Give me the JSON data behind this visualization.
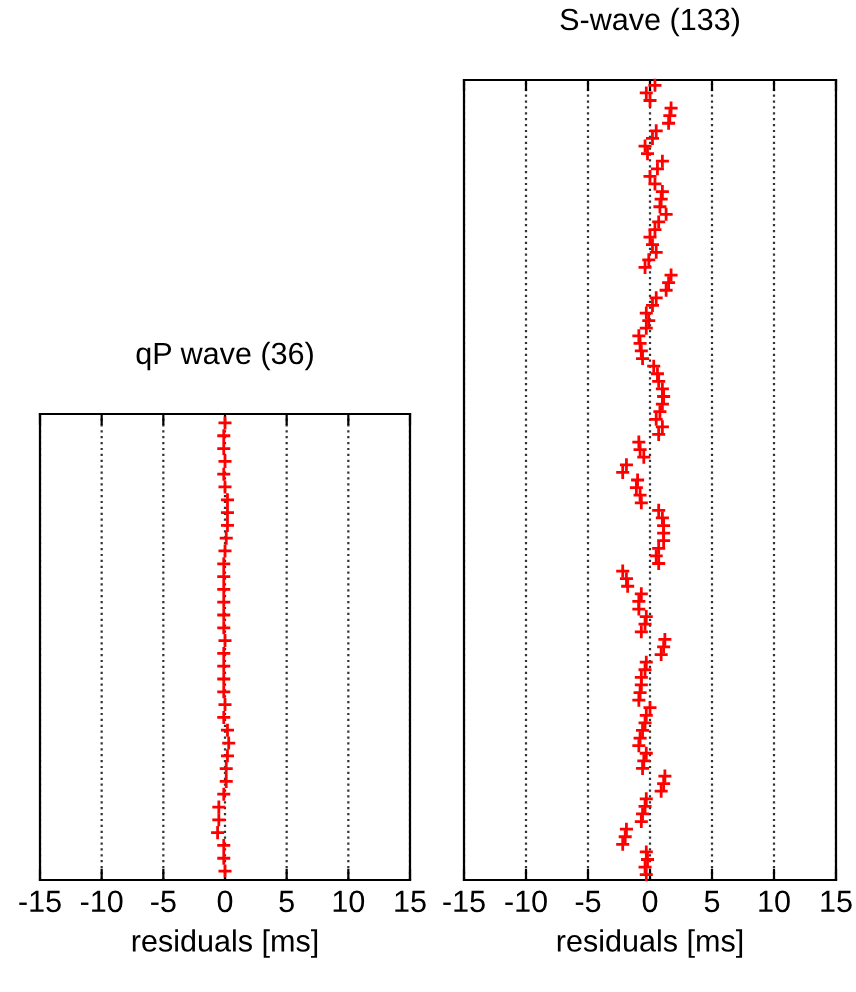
{
  "chart_data": [
    {
      "type": "scatter",
      "title": "qP wave (36)",
      "xlabel": "residuals [ms]",
      "orientation": "horizontal",
      "marker": "cross",
      "grid": "x",
      "tick_labels": "x",
      "xlim": [
        -15,
        15
      ],
      "xticks": [
        -15,
        -10,
        -5,
        0,
        5,
        10,
        15
      ],
      "categories": [
        null,
        null,
        null,
        null,
        null,
        null,
        null,
        null,
        null,
        null,
        null,
        null,
        null,
        null,
        null,
        null,
        null,
        null,
        null,
        null,
        null,
        null,
        null,
        null,
        null,
        null,
        null,
        null,
        null,
        null,
        null,
        null,
        null,
        null,
        null,
        null
      ],
      "series": [
        {
          "color": "#ff0000",
          "values": [
            0,
            -0.1,
            -0.1,
            0,
            -0.1,
            0,
            0.2,
            0.2,
            0.2,
            0.1,
            0,
            -0.1,
            -0.1,
            -0.1,
            -0.1,
            -0.1,
            -0.1,
            0,
            -0.1,
            -0.1,
            -0.1,
            -0.1,
            0,
            -0.1,
            0.2,
            0.3,
            0.2,
            0.1,
            0.1,
            -0.1,
            -0.5,
            -0.5,
            -0.6,
            -0.1,
            -0.1,
            0
          ]
        }
      ]
    },
    {
      "type": "scatter",
      "title": "S-wave (133)",
      "xlabel": "residuals [ms]",
      "orientation": "horizontal",
      "marker": "cross",
      "grid": "x",
      "tick_labels": "x",
      "xlim": [
        -15,
        15
      ],
      "xticks": [
        -15,
        -10,
        -5,
        0,
        5,
        10,
        15
      ],
      "categories": [
        null,
        null,
        null,
        null,
        null,
        null,
        null,
        null,
        null,
        null,
        null,
        null,
        null,
        null,
        null,
        null,
        null,
        null,
        null,
        null,
        null,
        null,
        null,
        null,
        null,
        null,
        null,
        null,
        null,
        null,
        null,
        null,
        null,
        null,
        null,
        null,
        null,
        null,
        null,
        null,
        null,
        null,
        null,
        null,
        null,
        null,
        null,
        null,
        null,
        null,
        null,
        null,
        null,
        null,
        null,
        null,
        null,
        null,
        null,
        null,
        null,
        null,
        null,
        null,
        null,
        null,
        null,
        null,
        null,
        null,
        null,
        null,
        null,
        null,
        null,
        null,
        null,
        null,
        null,
        null,
        null,
        null,
        null,
        null,
        null,
        null,
        null,
        null,
        null,
        null,
        null,
        null,
        null,
        null,
        null,
        null,
        null,
        null,
        null,
        null,
        null,
        null,
        null,
        null,
        null
      ],
      "series": [
        {
          "color": "#ff0000",
          "values": [
            0.4,
            -0.3,
            0,
            1.7,
            1.6,
            1.5,
            0.5,
            0.2,
            -0.4,
            -0.2,
            1.0,
            0.6,
            0,
            0.4,
            1.0,
            0.9,
            0.8,
            1.3,
            0.7,
            0.4,
            0,
            0.2,
            0.5,
            -0.1,
            -0.4,
            1.7,
            1.5,
            1.3,
            0.5,
            0.2,
            -0.3,
            -0.1,
            -0.3,
            -0.9,
            -0.8,
            -0.7,
            -0.6,
            0.3,
            0.6,
            0.7,
            1.0,
            1.1,
            1.0,
            0.8,
            0.5,
            1.0,
            0.7,
            -0.9,
            -0.8,
            -0.5,
            -1.9,
            -2.2,
            -1.0,
            -1.1,
            -0.8,
            -0.7,
            0.7,
            1.0,
            1.1,
            1.1,
            1.1,
            0.7,
            0.5,
            0.7,
            -2.2,
            -1.9,
            -1.8,
            -0.7,
            -0.9,
            -0.9,
            -0.3,
            -0.4,
            -0.7,
            1.2,
            1.1,
            0.9,
            -0.3,
            -0.4,
            -0.7,
            -0.7,
            -0.8,
            -0.9,
            0,
            -0.3,
            -0.4,
            -0.6,
            -0.8,
            -0.9,
            -0.3,
            -0.5,
            -0.6,
            1.2,
            1.1,
            0.9,
            -0.3,
            -0.4,
            -0.6,
            -0.7,
            -1.9,
            -2.0,
            -2.2,
            -0.3,
            -0.2,
            -0.4,
            -0.3
          ]
        }
      ]
    }
  ]
}
